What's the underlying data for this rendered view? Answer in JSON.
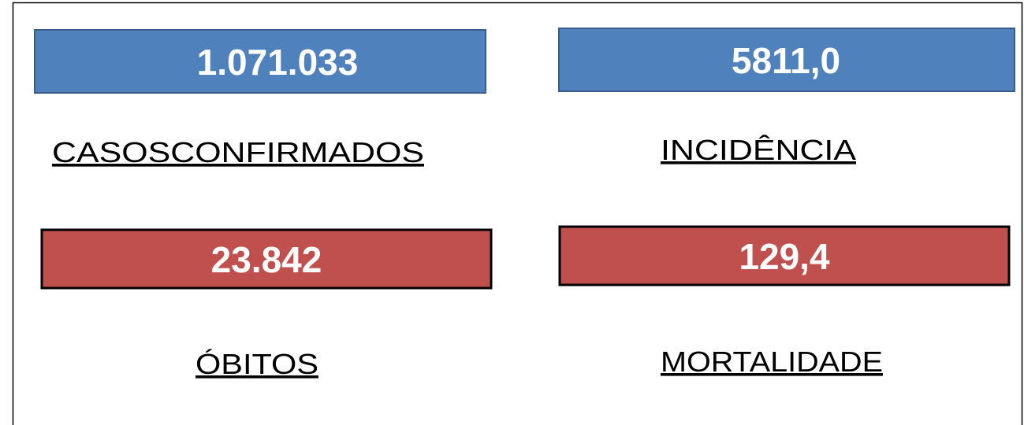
{
  "cards": [
    {
      "value": "1.071.033",
      "label": "CASOSCONFIRMADOS"
    },
    {
      "value": "5811,0",
      "label": "INCIDÊNCIA"
    },
    {
      "value": "23.842",
      "label": "ÓBITOS"
    },
    {
      "value": "129,4",
      "label": "MORTALIDADE"
    }
  ]
}
